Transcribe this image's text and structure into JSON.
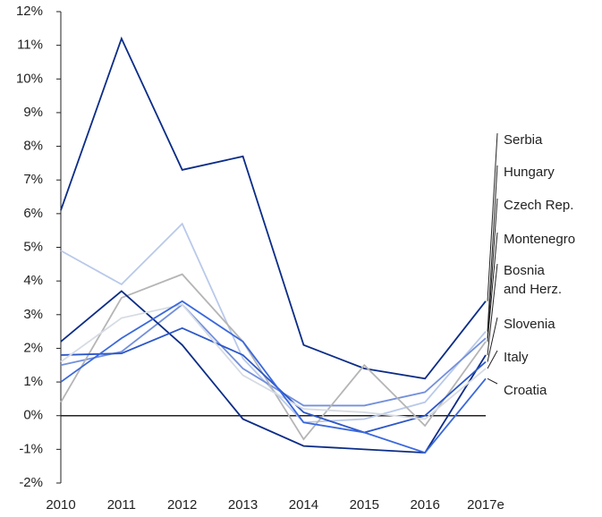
{
  "chart_data": {
    "type": "line",
    "categories": [
      "2010",
      "2011",
      "2012",
      "2013",
      "2014",
      "2015",
      "2016",
      "2017e"
    ],
    "ylim": [
      -2,
      12
    ],
    "yticks": [
      {
        "value": -2,
        "label": "-2%"
      },
      {
        "value": -1,
        "label": "-1%"
      },
      {
        "value": 0,
        "label": "0%"
      },
      {
        "value": 1,
        "label": "1%"
      },
      {
        "value": 2,
        "label": "2%"
      },
      {
        "value": 3,
        "label": "3%"
      },
      {
        "value": 4,
        "label": "4%"
      },
      {
        "value": 5,
        "label": "5%"
      },
      {
        "value": 6,
        "label": "6%"
      },
      {
        "value": 7,
        "label": "7%"
      },
      {
        "value": 8,
        "label": "8%"
      },
      {
        "value": 9,
        "label": "9%"
      },
      {
        "value": 10,
        "label": "10%"
      },
      {
        "value": 11,
        "label": "11%"
      },
      {
        "value": 12,
        "label": "12%"
      }
    ],
    "series": [
      {
        "name": "Serbia",
        "color": "#0b2c87",
        "values": [
          6.1,
          11.2,
          7.3,
          7.7,
          2.1,
          1.4,
          1.1,
          3.4
        ]
      },
      {
        "name": "Hungary",
        "color": "#b9c9ea",
        "values": [
          4.9,
          3.9,
          5.7,
          1.7,
          -0.2,
          -0.1,
          0.4,
          2.5
        ]
      },
      {
        "name": "Czech Rep.",
        "color": "#7390dc",
        "values": [
          1.5,
          1.9,
          3.3,
          1.4,
          0.3,
          0.3,
          0.7,
          2.3
        ]
      },
      {
        "name": "Montenegro",
        "color": "#b5b5b5",
        "values": [
          0.4,
          3.5,
          4.2,
          2.2,
          -0.7,
          1.5,
          -0.3,
          2.2
        ]
      },
      {
        "name": "Bosnia\nand Herz.",
        "color": "#0b2c87",
        "values": [
          2.2,
          3.7,
          2.1,
          -0.1,
          -0.9,
          -1.0,
          -1.1,
          1.8
        ]
      },
      {
        "name": "Slovenia",
        "color": "#2c57c8",
        "values": [
          1.8,
          1.85,
          2.6,
          1.8,
          0.1,
          -0.5,
          0.0,
          1.6
        ]
      },
      {
        "name": "Italy",
        "color": "#d6dbe4",
        "values": [
          1.6,
          2.9,
          3.3,
          1.2,
          0.2,
          0.1,
          -0.1,
          1.4
        ]
      },
      {
        "name": "Croatia",
        "color": "#3a68dd",
        "values": [
          1.0,
          2.3,
          3.4,
          2.2,
          -0.2,
          -0.5,
          -1.1,
          1.1
        ]
      }
    ]
  }
}
